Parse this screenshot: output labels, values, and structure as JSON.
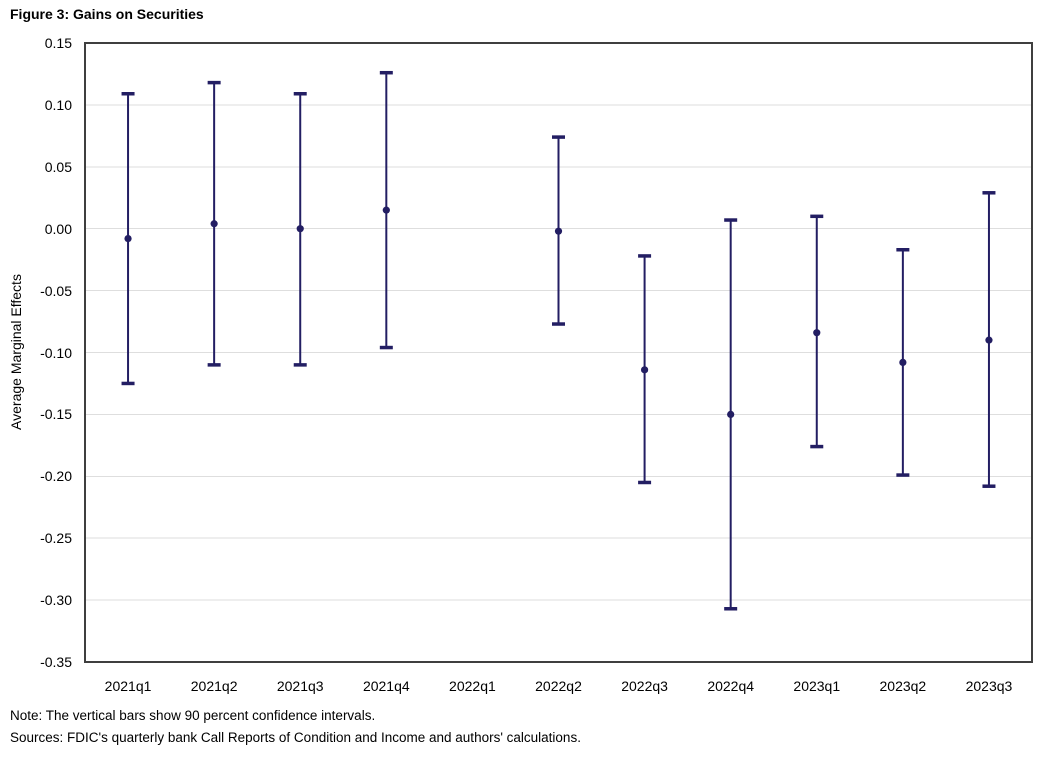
{
  "figure": {
    "title": "Figure 3: Gains on Securities",
    "note": "Note: The vertical bars show 90 percent confidence intervals.",
    "sources": "Sources: FDIC's quarterly bank Call Reports of Condition and Income and authors' calculations."
  },
  "chart_data": {
    "type": "scatter",
    "subtype": "point-estimates-with-error-bars",
    "title": "Figure 3: Gains on Securities",
    "xlabel": "",
    "ylabel": "Average Marginal Effects",
    "ylim": [
      -0.35,
      0.15
    ],
    "y_tick_step": 0.05,
    "y_ticks": [
      "0.15",
      "0.10",
      "0.05",
      "0.00",
      "-0.05",
      "-0.10",
      "-0.15",
      "-0.20",
      "-0.25",
      "-0.30",
      "-0.35"
    ],
    "grid": true,
    "legend": "none",
    "ci_level": "90 percent",
    "colors": {
      "series": "#231E63",
      "gridline": "#DEDEDE",
      "plot_border": "#3F3F3F",
      "text": "#000000",
      "background": "#FFFFFF"
    },
    "categories": [
      "2021q1",
      "2021q2",
      "2021q3",
      "2021q4",
      "2022q1",
      "2022q2",
      "2022q3",
      "2022q4",
      "2023q1",
      "2023q2",
      "2023q3"
    ],
    "series": [
      {
        "name": "Average Marginal Effects",
        "points": [
          {
            "x": "2021q1",
            "y": -0.008,
            "ci_low": -0.125,
            "ci_high": 0.109
          },
          {
            "x": "2021q2",
            "y": 0.004,
            "ci_low": -0.11,
            "ci_high": 0.118
          },
          {
            "x": "2021q3",
            "y": 0.0,
            "ci_low": -0.11,
            "ci_high": 0.109
          },
          {
            "x": "2021q4",
            "y": 0.015,
            "ci_low": -0.096,
            "ci_high": 0.126
          },
          {
            "x": "2022q1",
            "y": null,
            "ci_low": null,
            "ci_high": null
          },
          {
            "x": "2022q2",
            "y": -0.002,
            "ci_low": -0.077,
            "ci_high": 0.074
          },
          {
            "x": "2022q3",
            "y": -0.114,
            "ci_low": -0.205,
            "ci_high": -0.022
          },
          {
            "x": "2022q4",
            "y": -0.15,
            "ci_low": -0.307,
            "ci_high": 0.007
          },
          {
            "x": "2023q1",
            "y": -0.084,
            "ci_low": -0.176,
            "ci_high": 0.01
          },
          {
            "x": "2023q2",
            "y": -0.108,
            "ci_low": -0.199,
            "ci_high": -0.017
          },
          {
            "x": "2023q3",
            "y": -0.09,
            "ci_low": -0.208,
            "ci_high": 0.029
          }
        ]
      }
    ]
  }
}
